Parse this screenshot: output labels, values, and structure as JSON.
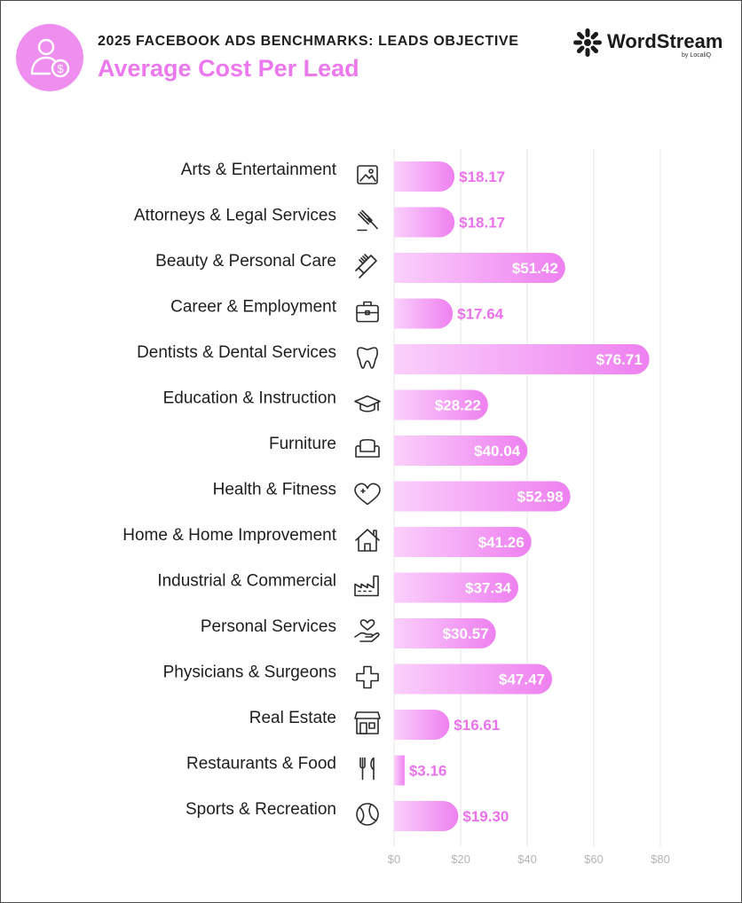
{
  "header": {
    "super_title": "2025 FACEBOOK ADS BENCHMARKS: LEADS OBJECTIVE",
    "title": "Average Cost Per Lead",
    "icon": "user-dollar-icon"
  },
  "brand": {
    "name": "WordStream",
    "sub": "by LocaliQ",
    "logo_icon": "wordstream-logo-icon"
  },
  "colors": {
    "bar_start": "#fad0fb",
    "bar_end": "#ee80f0",
    "title_accent": "#ec78ee"
  },
  "chart_data": {
    "type": "bar",
    "orientation": "horizontal",
    "title": "Average Cost Per Lead",
    "categories": [
      "Arts & Entertainment",
      "Attorneys & Legal Services",
      "Beauty & Personal Care",
      "Career & Employment",
      "Dentists & Dental Services",
      "Education & Instruction",
      "Furniture",
      "Health & Fitness",
      "Home & Home Improvement",
      "Industrial & Commercial",
      "Personal Services",
      "Physicians & Surgeons",
      "Real Estate",
      "Restaurants & Food",
      "Sports & Recreation"
    ],
    "values": [
      18.17,
      18.17,
      51.42,
      17.64,
      76.71,
      28.22,
      40.04,
      52.98,
      41.26,
      37.34,
      30.57,
      47.47,
      16.61,
      3.16,
      19.3
    ],
    "value_labels": [
      "$18.17",
      "$18.17",
      "$51.42",
      "$17.64",
      "$76.71",
      "$28.22",
      "$40.04",
      "$52.98",
      "$41.26",
      "$37.34",
      "$30.57",
      "$47.47",
      "$16.61",
      "$3.16",
      "$19.30"
    ],
    "icons": [
      "image-icon",
      "gavel-icon",
      "comb-icon",
      "briefcase-icon",
      "tooth-icon",
      "graduation-cap-icon",
      "armchair-icon",
      "heart-icon",
      "house-icon",
      "factory-icon",
      "hand-heart-icon",
      "medical-cross-icon",
      "storefront-icon",
      "fork-knife-icon",
      "ball-icon"
    ],
    "xlim": [
      0,
      80
    ],
    "x_ticks": [
      0,
      20,
      40,
      60,
      80
    ],
    "x_tick_labels": [
      "$0",
      "$20",
      "$40",
      "$60",
      "$80"
    ],
    "grid": true,
    "xlabel": "",
    "ylabel": ""
  }
}
